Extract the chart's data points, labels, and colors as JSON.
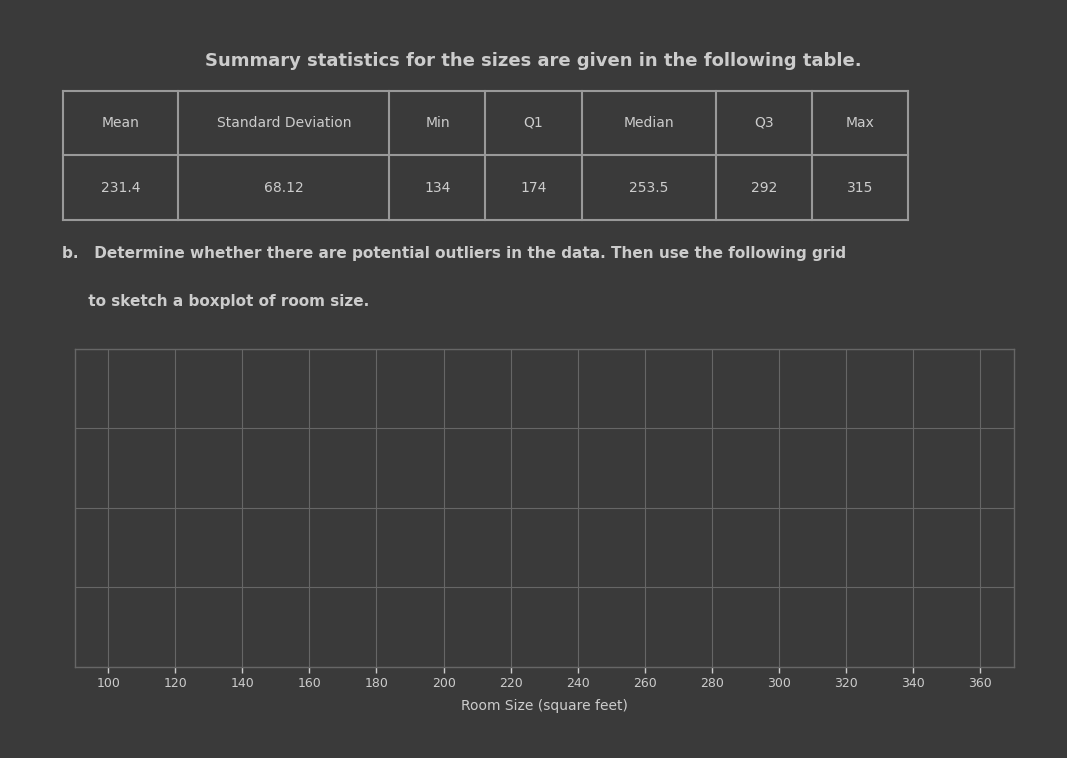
{
  "title": "Summary statistics for the sizes are given in the following table.",
  "table_headers": [
    "Mean",
    "Standard Deviation",
    "Min",
    "Q1",
    "Median",
    "Q3",
    "Max"
  ],
  "table_values": [
    "231.4",
    "68.12",
    "134",
    "174",
    "253.5",
    "292",
    "315"
  ],
  "part_b_text1": "b.   Determine whether there are potential outliers in the data. Then use the following grid",
  "part_b_text2": "     to sketch a boxplot of room size.",
  "x_ticks": [
    100,
    120,
    140,
    160,
    180,
    200,
    220,
    240,
    260,
    280,
    300,
    320,
    340,
    360
  ],
  "x_label": "Room Size (square feet)",
  "bg_color": "#3a3a3a",
  "text_color": "#cccccc",
  "grid_color": "#666666",
  "table_border_color": "#999999",
  "title_fontsize": 13,
  "body_fontsize": 11
}
